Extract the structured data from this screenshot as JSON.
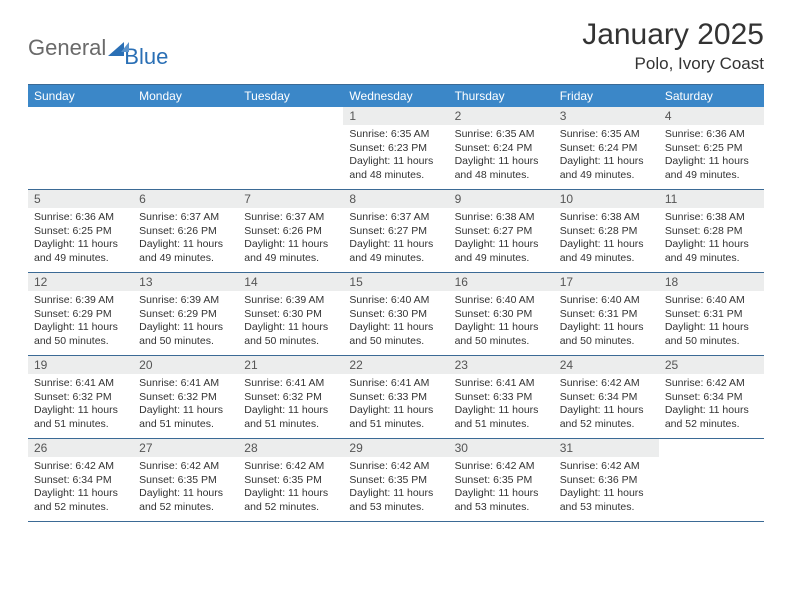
{
  "brand": {
    "part1": "General",
    "part2": "Blue"
  },
  "title": "January 2025",
  "location": "Polo, Ivory Coast",
  "colors": {
    "header_bg": "#3b87c8",
    "header_text": "#ffffff",
    "daynum_bg": "#eceded",
    "border": "#3b6a95",
    "logo_gray": "#6a6a6a",
    "logo_blue": "#2a6fb5"
  },
  "day_names": [
    "Sunday",
    "Monday",
    "Tuesday",
    "Wednesday",
    "Thursday",
    "Friday",
    "Saturday"
  ],
  "weeks": [
    [
      {
        "day": "",
        "sunrise": "",
        "sunset": "",
        "daylight": ""
      },
      {
        "day": "",
        "sunrise": "",
        "sunset": "",
        "daylight": ""
      },
      {
        "day": "",
        "sunrise": "",
        "sunset": "",
        "daylight": ""
      },
      {
        "day": "1",
        "sunrise": "Sunrise: 6:35 AM",
        "sunset": "Sunset: 6:23 PM",
        "daylight": "Daylight: 11 hours and 48 minutes."
      },
      {
        "day": "2",
        "sunrise": "Sunrise: 6:35 AM",
        "sunset": "Sunset: 6:24 PM",
        "daylight": "Daylight: 11 hours and 48 minutes."
      },
      {
        "day": "3",
        "sunrise": "Sunrise: 6:35 AM",
        "sunset": "Sunset: 6:24 PM",
        "daylight": "Daylight: 11 hours and 49 minutes."
      },
      {
        "day": "4",
        "sunrise": "Sunrise: 6:36 AM",
        "sunset": "Sunset: 6:25 PM",
        "daylight": "Daylight: 11 hours and 49 minutes."
      }
    ],
    [
      {
        "day": "5",
        "sunrise": "Sunrise: 6:36 AM",
        "sunset": "Sunset: 6:25 PM",
        "daylight": "Daylight: 11 hours and 49 minutes."
      },
      {
        "day": "6",
        "sunrise": "Sunrise: 6:37 AM",
        "sunset": "Sunset: 6:26 PM",
        "daylight": "Daylight: 11 hours and 49 minutes."
      },
      {
        "day": "7",
        "sunrise": "Sunrise: 6:37 AM",
        "sunset": "Sunset: 6:26 PM",
        "daylight": "Daylight: 11 hours and 49 minutes."
      },
      {
        "day": "8",
        "sunrise": "Sunrise: 6:37 AM",
        "sunset": "Sunset: 6:27 PM",
        "daylight": "Daylight: 11 hours and 49 minutes."
      },
      {
        "day": "9",
        "sunrise": "Sunrise: 6:38 AM",
        "sunset": "Sunset: 6:27 PM",
        "daylight": "Daylight: 11 hours and 49 minutes."
      },
      {
        "day": "10",
        "sunrise": "Sunrise: 6:38 AM",
        "sunset": "Sunset: 6:28 PM",
        "daylight": "Daylight: 11 hours and 49 minutes."
      },
      {
        "day": "11",
        "sunrise": "Sunrise: 6:38 AM",
        "sunset": "Sunset: 6:28 PM",
        "daylight": "Daylight: 11 hours and 49 minutes."
      }
    ],
    [
      {
        "day": "12",
        "sunrise": "Sunrise: 6:39 AM",
        "sunset": "Sunset: 6:29 PM",
        "daylight": "Daylight: 11 hours and 50 minutes."
      },
      {
        "day": "13",
        "sunrise": "Sunrise: 6:39 AM",
        "sunset": "Sunset: 6:29 PM",
        "daylight": "Daylight: 11 hours and 50 minutes."
      },
      {
        "day": "14",
        "sunrise": "Sunrise: 6:39 AM",
        "sunset": "Sunset: 6:30 PM",
        "daylight": "Daylight: 11 hours and 50 minutes."
      },
      {
        "day": "15",
        "sunrise": "Sunrise: 6:40 AM",
        "sunset": "Sunset: 6:30 PM",
        "daylight": "Daylight: 11 hours and 50 minutes."
      },
      {
        "day": "16",
        "sunrise": "Sunrise: 6:40 AM",
        "sunset": "Sunset: 6:30 PM",
        "daylight": "Daylight: 11 hours and 50 minutes."
      },
      {
        "day": "17",
        "sunrise": "Sunrise: 6:40 AM",
        "sunset": "Sunset: 6:31 PM",
        "daylight": "Daylight: 11 hours and 50 minutes."
      },
      {
        "day": "18",
        "sunrise": "Sunrise: 6:40 AM",
        "sunset": "Sunset: 6:31 PM",
        "daylight": "Daylight: 11 hours and 50 minutes."
      }
    ],
    [
      {
        "day": "19",
        "sunrise": "Sunrise: 6:41 AM",
        "sunset": "Sunset: 6:32 PM",
        "daylight": "Daylight: 11 hours and 51 minutes."
      },
      {
        "day": "20",
        "sunrise": "Sunrise: 6:41 AM",
        "sunset": "Sunset: 6:32 PM",
        "daylight": "Daylight: 11 hours and 51 minutes."
      },
      {
        "day": "21",
        "sunrise": "Sunrise: 6:41 AM",
        "sunset": "Sunset: 6:32 PM",
        "daylight": "Daylight: 11 hours and 51 minutes."
      },
      {
        "day": "22",
        "sunrise": "Sunrise: 6:41 AM",
        "sunset": "Sunset: 6:33 PM",
        "daylight": "Daylight: 11 hours and 51 minutes."
      },
      {
        "day": "23",
        "sunrise": "Sunrise: 6:41 AM",
        "sunset": "Sunset: 6:33 PM",
        "daylight": "Daylight: 11 hours and 51 minutes."
      },
      {
        "day": "24",
        "sunrise": "Sunrise: 6:42 AM",
        "sunset": "Sunset: 6:34 PM",
        "daylight": "Daylight: 11 hours and 52 minutes."
      },
      {
        "day": "25",
        "sunrise": "Sunrise: 6:42 AM",
        "sunset": "Sunset: 6:34 PM",
        "daylight": "Daylight: 11 hours and 52 minutes."
      }
    ],
    [
      {
        "day": "26",
        "sunrise": "Sunrise: 6:42 AM",
        "sunset": "Sunset: 6:34 PM",
        "daylight": "Daylight: 11 hours and 52 minutes."
      },
      {
        "day": "27",
        "sunrise": "Sunrise: 6:42 AM",
        "sunset": "Sunset: 6:35 PM",
        "daylight": "Daylight: 11 hours and 52 minutes."
      },
      {
        "day": "28",
        "sunrise": "Sunrise: 6:42 AM",
        "sunset": "Sunset: 6:35 PM",
        "daylight": "Daylight: 11 hours and 52 minutes."
      },
      {
        "day": "29",
        "sunrise": "Sunrise: 6:42 AM",
        "sunset": "Sunset: 6:35 PM",
        "daylight": "Daylight: 11 hours and 53 minutes."
      },
      {
        "day": "30",
        "sunrise": "Sunrise: 6:42 AM",
        "sunset": "Sunset: 6:35 PM",
        "daylight": "Daylight: 11 hours and 53 minutes."
      },
      {
        "day": "31",
        "sunrise": "Sunrise: 6:42 AM",
        "sunset": "Sunset: 6:36 PM",
        "daylight": "Daylight: 11 hours and 53 minutes."
      },
      {
        "day": "",
        "sunrise": "",
        "sunset": "",
        "daylight": ""
      }
    ]
  ]
}
